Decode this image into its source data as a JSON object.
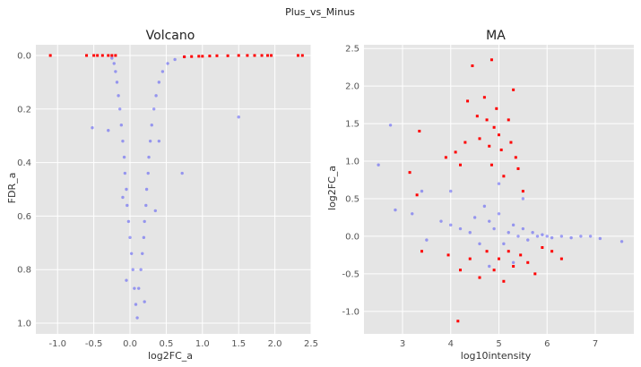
{
  "figure": {
    "suptitle": "Plus_vs_Minus"
  },
  "colors": {
    "background": "#e5e5e5",
    "grid": "#ffffff",
    "nonsignificant": "#0000ff",
    "significant": "#ff0000"
  },
  "chart_data": [
    {
      "type": "scatter",
      "title": "Volcano",
      "xlabel": "log2FC_a",
      "ylabel": "FDR_a",
      "xlim": [
        -1.3,
        2.5
      ],
      "ylim": [
        1.04,
        -0.04
      ],
      "y_inverted": true,
      "grid": true,
      "xticks": [
        "-1.0",
        "-0.5",
        "0.0",
        "0.5",
        "1.0",
        "1.5",
        "2.0",
        "2.5"
      ],
      "yticks": [
        "0.0",
        "0.2",
        "0.4",
        "0.6",
        "0.8",
        "1.0"
      ],
      "series": [
        {
          "color_key": "nonsignificant",
          "points": [
            [
              0.08,
              0.93
            ],
            [
              0.06,
              0.87
            ],
            [
              0.04,
              0.8
            ],
            [
              0.02,
              0.74
            ],
            [
              0.0,
              0.68
            ],
            [
              -0.02,
              0.62
            ],
            [
              -0.04,
              0.56
            ],
            [
              -0.05,
              0.5
            ],
            [
              -0.07,
              0.44
            ],
            [
              -0.08,
              0.38
            ],
            [
              -0.1,
              0.32
            ],
            [
              -0.12,
              0.26
            ],
            [
              -0.14,
              0.2
            ],
            [
              -0.16,
              0.15
            ],
            [
              -0.18,
              0.1
            ],
            [
              -0.2,
              0.06
            ],
            [
              -0.22,
              0.03
            ],
            [
              -0.25,
              0.01
            ],
            [
              0.12,
              0.87
            ],
            [
              0.15,
              0.8
            ],
            [
              0.17,
              0.74
            ],
            [
              0.19,
              0.68
            ],
            [
              0.2,
              0.62
            ],
            [
              0.22,
              0.56
            ],
            [
              0.23,
              0.5
            ],
            [
              0.25,
              0.44
            ],
            [
              0.26,
              0.38
            ],
            [
              0.28,
              0.32
            ],
            [
              0.3,
              0.26
            ],
            [
              0.33,
              0.2
            ],
            [
              0.36,
              0.15
            ],
            [
              0.4,
              0.1
            ],
            [
              0.45,
              0.06
            ],
            [
              0.52,
              0.03
            ],
            [
              0.62,
              0.015
            ],
            [
              0.75,
              0.005
            ],
            [
              -0.52,
              0.27
            ],
            [
              1.5,
              0.23
            ],
            [
              0.72,
              0.44
            ],
            [
              -0.3,
              0.28
            ],
            [
              0.4,
              0.32
            ],
            [
              0.35,
              0.58
            ],
            [
              0.2,
              0.92
            ],
            [
              0.1,
              0.98
            ],
            [
              -0.1,
              0.53
            ],
            [
              -0.05,
              0.84
            ]
          ]
        },
        {
          "color_key": "significant",
          "points": [
            [
              -1.1,
              0.0
            ],
            [
              -0.6,
              0.0
            ],
            [
              -0.5,
              0.0
            ],
            [
              -0.45,
              0.0
            ],
            [
              -0.38,
              0.0
            ],
            [
              -0.3,
              0.0
            ],
            [
              -0.25,
              0.0
            ],
            [
              -0.2,
              0.0
            ],
            [
              0.75,
              0.005
            ],
            [
              0.85,
              0.004
            ],
            [
              0.95,
              0.003
            ],
            [
              1.0,
              0.003
            ],
            [
              1.1,
              0.002
            ],
            [
              1.2,
              0.001
            ],
            [
              1.35,
              0.001
            ],
            [
              1.5,
              0.0
            ],
            [
              1.62,
              0.0
            ],
            [
              1.72,
              0.0
            ],
            [
              1.82,
              0.0
            ],
            [
              1.9,
              0.0
            ],
            [
              1.95,
              0.0
            ],
            [
              2.32,
              0.0
            ],
            [
              2.38,
              0.0
            ]
          ]
        }
      ]
    },
    {
      "type": "scatter",
      "title": "MA",
      "xlabel": "log10intensity",
      "ylabel": "log2FC_a",
      "xlim": [
        2.2,
        7.8
      ],
      "ylim": [
        -1.3,
        2.55
      ],
      "grid": true,
      "xticks": [
        "3",
        "4",
        "5",
        "6",
        "7"
      ],
      "yticks": [
        "-1.0",
        "-0.5",
        "0.0",
        "0.5",
        "1.0",
        "1.5",
        "2.0",
        "2.5"
      ],
      "series": [
        {
          "color_key": "nonsignificant",
          "points": [
            [
              2.5,
              0.95
            ],
            [
              2.75,
              1.48
            ],
            [
              2.85,
              0.35
            ],
            [
              3.2,
              0.3
            ],
            [
              3.4,
              0.6
            ],
            [
              3.5,
              -0.05
            ],
            [
              3.8,
              0.2
            ],
            [
              4.0,
              0.15
            ],
            [
              4.2,
              0.1
            ],
            [
              4.4,
              0.05
            ],
            [
              4.5,
              0.25
            ],
            [
              4.6,
              -0.1
            ],
            [
              4.7,
              0.4
            ],
            [
              4.8,
              0.2
            ],
            [
              4.9,
              0.1
            ],
            [
              5.0,
              0.3
            ],
            [
              5.1,
              -0.1
            ],
            [
              5.2,
              0.05
            ],
            [
              5.3,
              0.15
            ],
            [
              5.4,
              0.0
            ],
            [
              5.5,
              0.1
            ],
            [
              5.6,
              -0.05
            ],
            [
              5.7,
              0.05
            ],
            [
              5.8,
              0.0
            ],
            [
              5.9,
              0.02
            ],
            [
              6.0,
              0.0
            ],
            [
              6.1,
              -0.02
            ],
            [
              6.3,
              0.0
            ],
            [
              6.5,
              -0.02
            ],
            [
              6.7,
              0.0
            ],
            [
              6.9,
              0.0
            ],
            [
              7.1,
              -0.03
            ],
            [
              7.55,
              -0.07
            ],
            [
              4.0,
              0.6
            ],
            [
              5.0,
              0.7
            ],
            [
              5.5,
              0.5
            ],
            [
              4.8,
              -0.4
            ],
            [
              5.3,
              -0.35
            ]
          ]
        },
        {
          "color_key": "significant",
          "points": [
            [
              3.35,
              1.4
            ],
            [
              3.15,
              0.85
            ],
            [
              3.3,
              0.55
            ],
            [
              3.4,
              -0.2
            ],
            [
              3.9,
              1.05
            ],
            [
              3.95,
              -0.25
            ],
            [
              4.1,
              1.12
            ],
            [
              4.2,
              0.95
            ],
            [
              4.3,
              1.25
            ],
            [
              4.35,
              1.8
            ],
            [
              4.45,
              2.27
            ],
            [
              4.55,
              1.6
            ],
            [
              4.6,
              1.3
            ],
            [
              4.7,
              1.85
            ],
            [
              4.75,
              1.55
            ],
            [
              4.8,
              1.2
            ],
            [
              4.85,
              0.95
            ],
            [
              4.9,
              1.45
            ],
            [
              4.95,
              1.7
            ],
            [
              5.0,
              1.35
            ],
            [
              5.05,
              1.15
            ],
            [
              5.1,
              0.8
            ],
            [
              5.2,
              1.55
            ],
            [
              5.25,
              1.25
            ],
            [
              5.3,
              1.95
            ],
            [
              5.35,
              1.05
            ],
            [
              5.4,
              0.9
            ],
            [
              5.5,
              0.6
            ],
            [
              4.85,
              2.35
            ],
            [
              4.15,
              -1.13
            ],
            [
              4.2,
              -0.45
            ],
            [
              4.4,
              -0.3
            ],
            [
              4.6,
              -0.55
            ],
            [
              4.75,
              -0.2
            ],
            [
              4.9,
              -0.45
            ],
            [
              5.0,
              -0.3
            ],
            [
              5.1,
              -0.6
            ],
            [
              5.3,
              -0.4
            ],
            [
              5.45,
              -0.25
            ],
            [
              5.6,
              -0.35
            ],
            [
              5.75,
              -0.5
            ],
            [
              5.9,
              -0.15
            ],
            [
              6.1,
              -0.2
            ],
            [
              6.3,
              -0.3
            ],
            [
              5.2,
              -0.2
            ]
          ]
        }
      ]
    }
  ]
}
